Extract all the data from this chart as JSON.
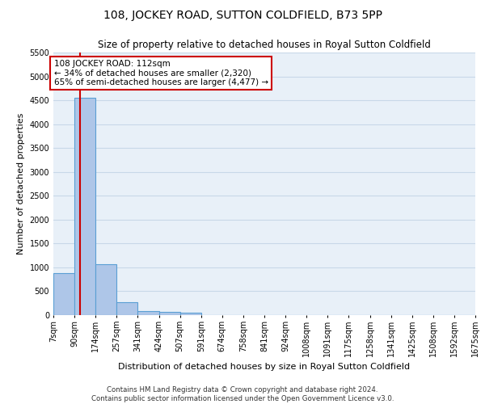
{
  "title": "108, JOCKEY ROAD, SUTTON COLDFIELD, B73 5PP",
  "subtitle": "Size of property relative to detached houses in Royal Sutton Coldfield",
  "xlabel": "Distribution of detached houses by size in Royal Sutton Coldfield",
  "ylabel": "Number of detached properties",
  "bin_labels": [
    "7sqm",
    "90sqm",
    "174sqm",
    "257sqm",
    "341sqm",
    "424sqm",
    "507sqm",
    "591sqm",
    "674sqm",
    "758sqm",
    "841sqm",
    "924sqm",
    "1008sqm",
    "1091sqm",
    "1175sqm",
    "1258sqm",
    "1341sqm",
    "1425sqm",
    "1508sqm",
    "1592sqm",
    "1675sqm"
  ],
  "bar_values": [
    880,
    4550,
    1060,
    275,
    80,
    75,
    50,
    0,
    0,
    0,
    0,
    0,
    0,
    0,
    0,
    0,
    0,
    0,
    0,
    0
  ],
  "bar_color": "#aec6e8",
  "bar_edge_color": "#5a9fd4",
  "bar_linewidth": 0.8,
  "grid_color": "#c8d8e8",
  "bg_color": "#e8f0f8",
  "vline_x": 1.26,
  "vline_color": "#cc0000",
  "annotation_text": "108 JOCKEY ROAD: 112sqm\n← 34% of detached houses are smaller (2,320)\n65% of semi-detached houses are larger (4,477) →",
  "annotation_box_color": "#ffffff",
  "annotation_border_color": "#cc0000",
  "ylim": [
    0,
    5500
  ],
  "yticks": [
    0,
    500,
    1000,
    1500,
    2000,
    2500,
    3000,
    3500,
    4000,
    4500,
    5000,
    5500
  ],
  "footer1": "Contains HM Land Registry data © Crown copyright and database right 2024.",
  "footer2": "Contains public sector information licensed under the Open Government Licence v3.0.",
  "title_fontsize": 10,
  "subtitle_fontsize": 8.5,
  "axis_label_fontsize": 8,
  "tick_fontsize": 7,
  "annot_fontsize": 7.5
}
